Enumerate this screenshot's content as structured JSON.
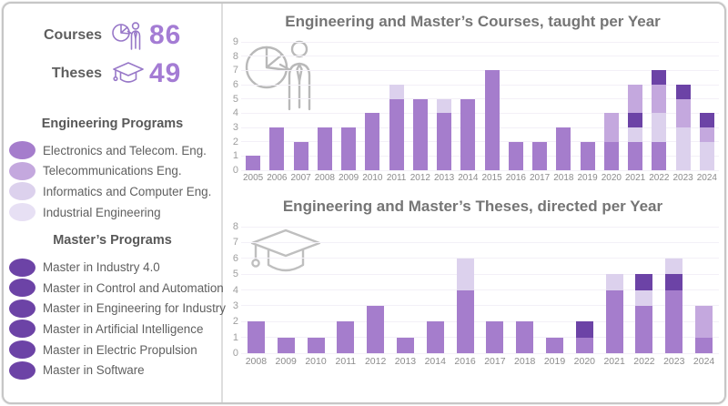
{
  "colors": {
    "electronics": "#a57dcc",
    "telecom": "#c4a8de",
    "informatics": "#dcd1ed",
    "industrial": "#e7e0f4",
    "master": "#6c43a6",
    "accent_number": "#a47cd4",
    "title_gray": "#757575",
    "axis_gray": "#9e9e9e",
    "watermark_gray": "#b9b9b9",
    "small_icon_purple": "#9878c8"
  },
  "sidebar": {
    "stats": [
      {
        "label": "Courses",
        "value": "86",
        "icon": "pie-presentation-icon"
      },
      {
        "label": "Theses",
        "value": "49",
        "icon": "graduation-cap-icon"
      }
    ],
    "engineering_header": "Engineering Programs",
    "engineering_items": [
      {
        "label": "Electronics and Telecom. Eng.",
        "color_key": "electronics"
      },
      {
        "label": "Telecommunications Eng.",
        "color_key": "telecom"
      },
      {
        "label": "Informatics and Computer Eng.",
        "color_key": "informatics"
      },
      {
        "label": "Industrial Engineering",
        "color_key": "industrial"
      }
    ],
    "masters_header": "Master’s Programs",
    "masters_items": [
      {
        "label": "Master in Industry 4.0",
        "color_key": "master"
      },
      {
        "label": "Master in Control and Automation",
        "color_key": "master"
      },
      {
        "label": "Master in Engineering for Industry",
        "color_key": "master"
      },
      {
        "label": "Master in Artificial Intelligence",
        "color_key": "master"
      },
      {
        "label": "Master in Electric Propulsion",
        "color_key": "master"
      },
      {
        "label": "Master in Software",
        "color_key": "master"
      }
    ]
  },
  "chart_data": [
    {
      "type": "bar",
      "stacked": true,
      "title": "Engineering and Master’s Courses, taught per Year",
      "xlabel": "",
      "ylabel": "",
      "ylim": [
        0,
        9
      ],
      "grid": true,
      "legend_position": "left-sidebar",
      "watermark_icon": "pie-presentation-icon",
      "categories": [
        "2005",
        "2006",
        "2007",
        "2008",
        "2009",
        "2010",
        "2011",
        "2012",
        "2013",
        "2014",
        "2015",
        "2016",
        "2017",
        "2018",
        "2019",
        "2020",
        "2021",
        "2022",
        "2023",
        "2024"
      ],
      "totals": [
        1,
        3,
        2,
        3,
        3,
        4,
        6,
        5,
        5,
        5,
        7,
        2,
        2,
        3,
        2,
        4,
        6,
        7,
        6,
        4
      ],
      "bars": [
        [
          {
            "c": "electronics",
            "v": 1
          }
        ],
        [
          {
            "c": "electronics",
            "v": 3
          }
        ],
        [
          {
            "c": "electronics",
            "v": 2
          }
        ],
        [
          {
            "c": "electronics",
            "v": 3
          }
        ],
        [
          {
            "c": "electronics",
            "v": 3
          }
        ],
        [
          {
            "c": "electronics",
            "v": 4
          }
        ],
        [
          {
            "c": "electronics",
            "v": 5
          },
          {
            "c": "informatics",
            "v": 1
          }
        ],
        [
          {
            "c": "electronics",
            "v": 5
          }
        ],
        [
          {
            "c": "electronics",
            "v": 4
          },
          {
            "c": "informatics",
            "v": 1
          }
        ],
        [
          {
            "c": "electronics",
            "v": 5
          }
        ],
        [
          {
            "c": "electronics",
            "v": 7
          }
        ],
        [
          {
            "c": "electronics",
            "v": 2
          }
        ],
        [
          {
            "c": "electronics",
            "v": 2
          }
        ],
        [
          {
            "c": "electronics",
            "v": 3
          }
        ],
        [
          {
            "c": "electronics",
            "v": 2
          }
        ],
        [
          {
            "c": "electronics",
            "v": 2
          },
          {
            "c": "telecom",
            "v": 2
          }
        ],
        [
          {
            "c": "electronics",
            "v": 2
          },
          {
            "c": "informatics",
            "v": 1
          },
          {
            "c": "master",
            "v": 1
          },
          {
            "c": "telecom",
            "v": 2
          }
        ],
        [
          {
            "c": "electronics",
            "v": 2
          },
          {
            "c": "informatics",
            "v": 2
          },
          {
            "c": "telecom",
            "v": 2
          },
          {
            "c": "master",
            "v": 1
          }
        ],
        [
          {
            "c": "informatics",
            "v": 3
          },
          {
            "c": "telecom",
            "v": 2
          },
          {
            "c": "master",
            "v": 1
          }
        ],
        [
          {
            "c": "informatics",
            "v": 2
          },
          {
            "c": "telecom",
            "v": 1
          },
          {
            "c": "master",
            "v": 1
          }
        ]
      ]
    },
    {
      "type": "bar",
      "stacked": true,
      "title": "Engineering and Master’s Theses, directed per Year",
      "xlabel": "",
      "ylabel": "",
      "ylim": [
        0,
        8
      ],
      "grid": true,
      "legend_position": "left-sidebar",
      "watermark_icon": "graduation-cap-icon",
      "categories": [
        "2008",
        "2009",
        "2010",
        "2011",
        "2012",
        "2013",
        "2014",
        "2016",
        "2017",
        "2018",
        "2019",
        "2020",
        "2021",
        "2022",
        "2023",
        "2024"
      ],
      "totals": [
        2,
        1,
        1,
        2,
        3,
        1,
        2,
        6,
        2,
        2,
        1,
        2,
        5,
        5,
        6,
        3
      ],
      "bars": [
        [
          {
            "c": "electronics",
            "v": 2
          }
        ],
        [
          {
            "c": "electronics",
            "v": 1
          }
        ],
        [
          {
            "c": "electronics",
            "v": 1
          }
        ],
        [
          {
            "c": "electronics",
            "v": 2
          }
        ],
        [
          {
            "c": "electronics",
            "v": 3
          }
        ],
        [
          {
            "c": "electronics",
            "v": 1
          }
        ],
        [
          {
            "c": "electronics",
            "v": 2
          }
        ],
        [
          {
            "c": "electronics",
            "v": 4
          },
          {
            "c": "informatics",
            "v": 2
          }
        ],
        [
          {
            "c": "electronics",
            "v": 2
          }
        ],
        [
          {
            "c": "electronics",
            "v": 2
          }
        ],
        [
          {
            "c": "electronics",
            "v": 1
          }
        ],
        [
          {
            "c": "electronics",
            "v": 1
          },
          {
            "c": "master",
            "v": 1
          }
        ],
        [
          {
            "c": "electronics",
            "v": 4
          },
          {
            "c": "informatics",
            "v": 1
          }
        ],
        [
          {
            "c": "electronics",
            "v": 3
          },
          {
            "c": "informatics",
            "v": 1
          },
          {
            "c": "master",
            "v": 1
          }
        ],
        [
          {
            "c": "electronics",
            "v": 4
          },
          {
            "c": "master",
            "v": 1
          },
          {
            "c": "informatics",
            "v": 1
          }
        ],
        [
          {
            "c": "electronics",
            "v": 1
          },
          {
            "c": "telecom",
            "v": 2
          }
        ]
      ]
    }
  ]
}
